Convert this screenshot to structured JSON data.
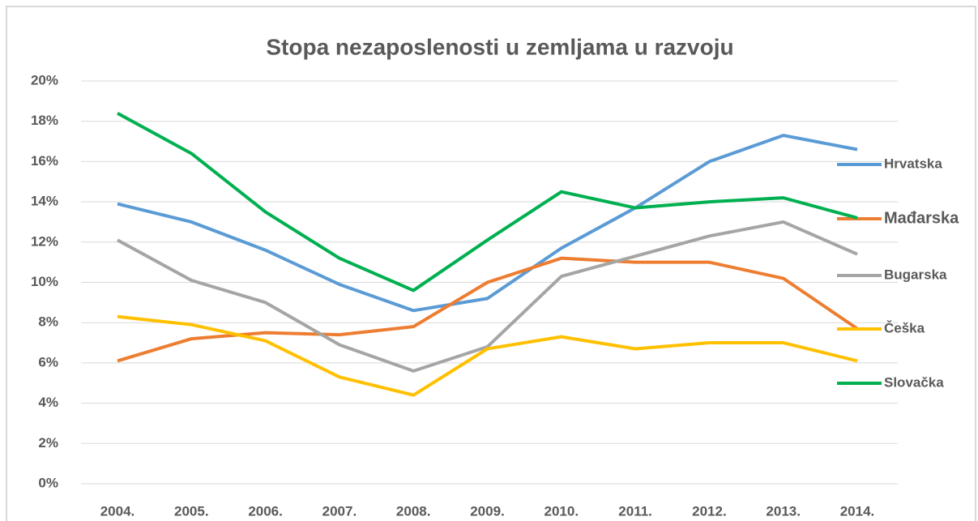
{
  "chart_data": {
    "type": "line",
    "title": "Stopa nezaposlenosti u zemljama u razvoju",
    "categories": [
      "2004.",
      "2005.",
      "2006.",
      "2007.",
      "2008.",
      "2009.",
      "2010.",
      "2011.",
      "2012.",
      "2013.",
      "2014."
    ],
    "series": [
      {
        "name": "Hrvatska",
        "color": "#5b9bd5",
        "values": [
          13.9,
          13.0,
          11.6,
          9.9,
          8.6,
          9.2,
          11.7,
          13.7,
          16.0,
          17.3,
          16.6
        ]
      },
      {
        "name": "Mađarska",
        "color": "#ed7d31",
        "values": [
          6.1,
          7.2,
          7.5,
          7.4,
          7.8,
          10.0,
          11.2,
          11.0,
          11.0,
          10.2,
          7.7
        ]
      },
      {
        "name": "Bugarska",
        "color": "#a5a5a5",
        "values": [
          12.1,
          10.1,
          9.0,
          6.9,
          5.6,
          6.8,
          10.3,
          11.3,
          12.3,
          13.0,
          11.4
        ]
      },
      {
        "name": "Češka",
        "color": "#ffc000",
        "values": [
          8.3,
          7.9,
          7.1,
          5.3,
          4.4,
          6.7,
          7.3,
          6.7,
          7.0,
          7.0,
          6.1
        ]
      },
      {
        "name": "Slovačka",
        "color": "#00b050",
        "values": [
          18.4,
          16.4,
          13.5,
          11.2,
          9.6,
          12.1,
          14.5,
          13.7,
          14.0,
          14.2,
          13.2
        ]
      }
    ],
    "ylim": [
      0,
      20
    ],
    "yticks": [
      {
        "value": 0,
        "label": "0%"
      },
      {
        "value": 2,
        "label": "2%"
      },
      {
        "value": 4,
        "label": "4%"
      },
      {
        "value": 6,
        "label": "6%"
      },
      {
        "value": 8,
        "label": "8%"
      },
      {
        "value": 10,
        "label": "10%"
      },
      {
        "value": 12,
        "label": "12%"
      },
      {
        "value": 14,
        "label": "14%"
      },
      {
        "value": 16,
        "label": "16%"
      },
      {
        "value": 18,
        "label": "18%"
      },
      {
        "value": 20,
        "label": "20%"
      }
    ],
    "grid": true,
    "legend": "right"
  }
}
